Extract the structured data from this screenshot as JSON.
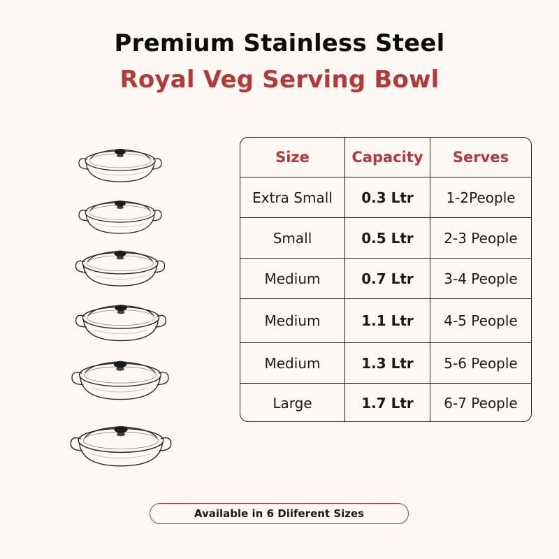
{
  "title": {
    "line1": "Premium Stainless Steel",
    "line2": "Royal Veg Serving Bowl"
  },
  "colors": {
    "accent": "#b33a38",
    "text": "#1a1a1a",
    "background": "#fdf8f4"
  },
  "bowls": {
    "count": 6,
    "icon": "serving-bowl-with-lid-icon"
  },
  "table": {
    "headers": {
      "size": "Size",
      "capacity": "Capacity",
      "serves": "Serves"
    },
    "rows": [
      {
        "size": "Extra Small",
        "capacity": "0.3 Ltr",
        "serves": "1-2People"
      },
      {
        "size": "Small",
        "capacity": "0.5 Ltr",
        "serves": "2-3 People"
      },
      {
        "size": "Medium",
        "capacity": "0.7 Ltr",
        "serves": "3-4 People"
      },
      {
        "size": "Medium",
        "capacity": "1.1 Ltr",
        "serves": "4-5 People"
      },
      {
        "size": "Medium",
        "capacity": "1.3 Ltr",
        "serves": "5-6 People"
      },
      {
        "size": "Large",
        "capacity": "1.7 Ltr",
        "serves": "6-7 People"
      }
    ]
  },
  "footer": {
    "label": "Available in 6 Diiferent Sizes"
  }
}
